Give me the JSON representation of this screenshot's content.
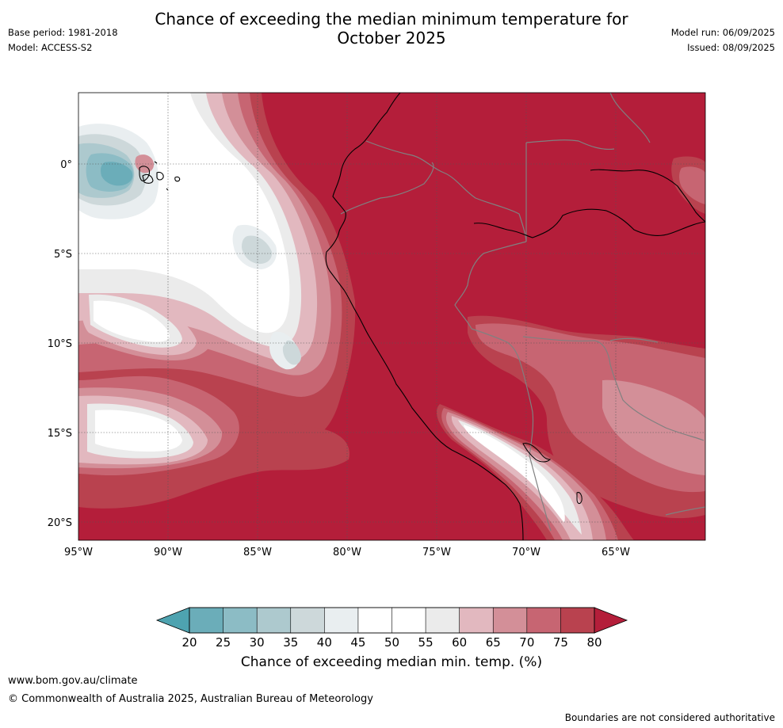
{
  "header": {
    "title_line1": "Chance of exceeding the median minimum temperature for",
    "title_line2": "October 2025",
    "base_period": "Base period: 1981-2018",
    "model": "Model: ACCESS-S2",
    "model_run": "Model run: 06/09/2025",
    "issued": "Issued: 08/09/2025"
  },
  "map": {
    "lat_ticks": [
      {
        "value": 0,
        "label": "0°"
      },
      {
        "value": -5,
        "label": "5°S"
      },
      {
        "value": -10,
        "label": "10°S"
      },
      {
        "value": -15,
        "label": "15°S"
      },
      {
        "value": -20,
        "label": "20°S"
      }
    ],
    "lon_ticks": [
      {
        "value": -95,
        "label": "95°W"
      },
      {
        "value": -90,
        "label": "90°W"
      },
      {
        "value": -85,
        "label": "85°W"
      },
      {
        "value": -80,
        "label": "80°W"
      },
      {
        "value": -75,
        "label": "75°W"
      },
      {
        "value": -70,
        "label": "70°W"
      },
      {
        "value": -65,
        "label": "65°W"
      }
    ]
  },
  "colorbar": {
    "title": "Chance of exceeding median min. temp. (%)",
    "ticks": [
      "20",
      "25",
      "30",
      "35",
      "40",
      "45",
      "50",
      "55",
      "60",
      "65",
      "70",
      "75",
      "80"
    ],
    "colors": [
      "#4ea3b0",
      "#6badb9",
      "#8cbcc5",
      "#adc9ce",
      "#cdd8da",
      "#e9eef0",
      "#ffffff",
      "#ffffff",
      "#ebebeb",
      "#e2b8bf",
      "#d38f98",
      "#c76572",
      "#b9424f",
      "#b41e3a"
    ]
  },
  "footer": {
    "website": "www.bom.gov.au/climate",
    "copyright": "© Commonwealth of Australia 2025, Australian Bureau of Meteorology",
    "disclaimer": "Boundaries are not considered authoritative"
  }
}
